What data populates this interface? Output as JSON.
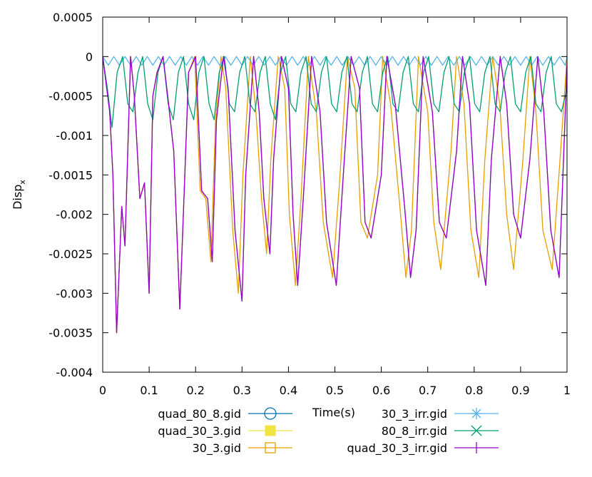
{
  "chart_data": {
    "type": "line",
    "xlabel": "Time(s)",
    "ylabel_main": "Disp",
    "ylabel_sub": "x",
    "xlim": [
      0,
      1
    ],
    "ylim": [
      -0.004,
      0.0005
    ],
    "xticks": [
      0,
      0.1,
      0.2,
      0.3,
      0.4,
      0.5,
      0.6,
      0.7,
      0.8,
      0.9,
      1
    ],
    "xtick_labels": [
      "0",
      "0.1",
      "0.2",
      "0.3",
      "0.4",
      "0.5",
      "0.6",
      "0.7",
      "0.8",
      "0.9",
      "1"
    ],
    "yticks": [
      0.0005,
      0,
      -0.0005,
      -0.001,
      -0.0015,
      -0.002,
      -0.0025,
      -0.003,
      -0.0035,
      -0.004
    ],
    "ytick_labels": [
      "0.0005",
      "0",
      "-0.0005",
      "-0.001",
      "-0.0015",
      "-0.002",
      "-0.0025",
      "-0.003",
      "-0.0035",
      "-0.004"
    ],
    "grid": false,
    "legend_position": "bottom",
    "series": [
      {
        "name": "quad_80_8.gid",
        "color": "#0072b2",
        "marker": "circle-open",
        "x": [
          0,
          0.015,
          0.022,
          0.03,
          0.041,
          0.048,
          0.055,
          0.06,
          0.068,
          0.08,
          0.09,
          0.1,
          0.108,
          0.117,
          0.13,
          0.14,
          0.153,
          0.166,
          0.175,
          0.185,
          0.2,
          0.213,
          0.226,
          0.236,
          0.245,
          0.26,
          0.27,
          0.285,
          0.3,
          0.308,
          0.325,
          0.337,
          0.347,
          0.36,
          0.368,
          0.385,
          0.4,
          0.41,
          0.42,
          0.432,
          0.45,
          0.468,
          0.482,
          0.503,
          0.517,
          0.535,
          0.553,
          0.565,
          0.578,
          0.6,
          0.612,
          0.63,
          0.65,
          0.663,
          0.675,
          0.69,
          0.71,
          0.725,
          0.74,
          0.762,
          0.775,
          0.79,
          0.805,
          0.825,
          0.837,
          0.856,
          0.87,
          0.885,
          0.9,
          0.92,
          0.937,
          0.95,
          0.965,
          0.983,
          1.0
        ],
        "y": [
          0,
          -0.0007,
          -0.0015,
          -0.0035,
          -0.0019,
          -0.0024,
          -0.001,
          0,
          -0.0005,
          -0.0018,
          -0.0016,
          -0.003,
          -0.0005,
          -0.0002,
          0,
          -0.0005,
          -0.0012,
          -0.0032,
          -0.0018,
          -0.0002,
          0,
          -0.0017,
          -0.0018,
          -0.0026,
          -0.0008,
          0,
          -0.0004,
          -0.0022,
          -0.0031,
          -0.0015,
          0,
          -0.0007,
          -0.0018,
          -0.0025,
          -0.0013,
          0,
          -0.0004,
          -0.002,
          -0.0029,
          -0.0018,
          0,
          -0.0007,
          -0.0021,
          -0.0029,
          -0.0016,
          0,
          -0.0004,
          -0.0021,
          -0.0023,
          -0.0015,
          0,
          -0.0006,
          -0.0019,
          -0.0028,
          -0.0022,
          0,
          -0.0007,
          -0.0021,
          -0.0023,
          -0.0012,
          0,
          -0.0006,
          -0.0022,
          -0.0029,
          -0.0013,
          0,
          -0.0006,
          -0.002,
          -0.0023,
          -0.0013,
          0,
          -0.0007,
          -0.0022,
          -0.0028,
          -0.0001
        ]
      },
      {
        "name": "quad_30_3.gid",
        "color": "#f0e442",
        "marker": "square-filled",
        "x": [
          0,
          0.015,
          0.022,
          0.03,
          0.041,
          0.048,
          0.055,
          0.06,
          0.068,
          0.08,
          0.09,
          0.1,
          0.108,
          0.117,
          0.13,
          0.14,
          0.153,
          0.166,
          0.175,
          0.185,
          0.2,
          0.213,
          0.226,
          0.236,
          0.245,
          0.26,
          0.27,
          0.285,
          0.3,
          0.308,
          0.325,
          0.337,
          0.347,
          0.36,
          0.368,
          0.385,
          0.4,
          0.41,
          0.42,
          0.432,
          0.45,
          0.468,
          0.482,
          0.503,
          0.517,
          0.535,
          0.553,
          0.565,
          0.578,
          0.6,
          0.612,
          0.63,
          0.65,
          0.663,
          0.675,
          0.69,
          0.71,
          0.725,
          0.74,
          0.762,
          0.775,
          0.79,
          0.805,
          0.825,
          0.837,
          0.856,
          0.87,
          0.885,
          0.9,
          0.92,
          0.937,
          0.95,
          0.965,
          0.983,
          1.0
        ],
        "y": [
          0,
          -0.0007,
          -0.0015,
          -0.0035,
          -0.0019,
          -0.0024,
          -0.001,
          0,
          -0.0005,
          -0.0018,
          -0.0016,
          -0.003,
          -0.0005,
          -0.0002,
          0,
          -0.0005,
          -0.0012,
          -0.0032,
          -0.0018,
          -0.0002,
          0,
          -0.0017,
          -0.0018,
          -0.0026,
          -0.0008,
          0,
          -0.0004,
          -0.0022,
          -0.0031,
          -0.0015,
          0,
          -0.0007,
          -0.0018,
          -0.0025,
          -0.0013,
          0,
          -0.0004,
          -0.002,
          -0.0029,
          -0.0018,
          0,
          -0.0007,
          -0.0021,
          -0.0029,
          -0.0016,
          0,
          -0.0004,
          -0.0021,
          -0.0023,
          -0.0015,
          0,
          -0.0006,
          -0.0019,
          -0.0028,
          -0.0022,
          0,
          -0.0007,
          -0.0021,
          -0.0023,
          -0.0012,
          0,
          -0.0006,
          -0.0022,
          -0.0029,
          -0.0013,
          0,
          -0.0006,
          -0.002,
          -0.0023,
          -0.0013,
          0,
          -0.0007,
          -0.0022,
          -0.0028,
          -0.0001
        ]
      },
      {
        "name": "30_3.gid",
        "color": "#e69f00",
        "marker": "square-open",
        "x": [
          0,
          0.015,
          0.022,
          0.03,
          0.041,
          0.048,
          0.055,
          0.06,
          0.068,
          0.08,
          0.09,
          0.1,
          0.108,
          0.117,
          0.13,
          0.14,
          0.153,
          0.166,
          0.175,
          0.185,
          0.198,
          0.21,
          0.222,
          0.233,
          0.243,
          0.255,
          0.265,
          0.28,
          0.292,
          0.302,
          0.318,
          0.33,
          0.342,
          0.353,
          0.362,
          0.378,
          0.392,
          0.402,
          0.415,
          0.427,
          0.443,
          0.46,
          0.475,
          0.495,
          0.51,
          0.527,
          0.543,
          0.556,
          0.57,
          0.592,
          0.603,
          0.62,
          0.64,
          0.653,
          0.665,
          0.68,
          0.7,
          0.713,
          0.728,
          0.75,
          0.762,
          0.778,
          0.793,
          0.81,
          0.823,
          0.84,
          0.855,
          0.87,
          0.885,
          0.905,
          0.92,
          0.933,
          0.948,
          0.968,
          0.985,
          1.0
        ],
        "y": [
          0,
          -0.0007,
          -0.0015,
          -0.0035,
          -0.0019,
          -0.0024,
          -0.001,
          0,
          -0.0005,
          -0.0018,
          -0.0016,
          -0.003,
          -0.0005,
          -0.0002,
          0,
          -0.0005,
          -0.0012,
          -0.0032,
          -0.0018,
          -0.0002,
          0,
          -0.0017,
          -0.0018,
          -0.0026,
          -0.0008,
          0,
          -0.0004,
          -0.0022,
          -0.003,
          -0.0015,
          0,
          -0.0007,
          -0.0018,
          -0.0025,
          -0.0013,
          0,
          -0.0004,
          -0.002,
          -0.0029,
          -0.0018,
          0,
          -0.0007,
          -0.0021,
          -0.0028,
          -0.0016,
          0,
          -0.0004,
          -0.0021,
          -0.0023,
          -0.0015,
          0,
          -0.0006,
          -0.0019,
          -0.0028,
          -0.0022,
          0,
          -0.0007,
          -0.0021,
          -0.0027,
          -0.0012,
          0,
          -0.0006,
          -0.0022,
          -0.0028,
          -0.0013,
          0,
          -0.0006,
          -0.002,
          -0.0027,
          -0.0013,
          0,
          -0.0007,
          -0.0022,
          -0.0027,
          -0.0013,
          0
        ]
      },
      {
        "name": "30_3_irr.gid",
        "color": "#56b4e9",
        "marker": "star",
        "x": [
          0,
          0.012,
          0.024,
          0.036,
          0.048,
          0.06,
          0.072,
          0.084,
          0.096,
          0.108,
          0.12,
          0.132,
          0.144,
          0.156,
          0.168,
          0.18,
          0.192,
          0.204,
          0.216,
          0.228,
          0.24,
          0.252,
          0.264,
          0.276,
          0.288,
          0.3,
          0.312,
          0.324,
          0.336,
          0.348,
          0.36,
          0.372,
          0.384,
          0.396,
          0.408,
          0.42,
          0.432,
          0.444,
          0.456,
          0.468,
          0.48,
          0.492,
          0.504,
          0.516,
          0.528,
          0.54,
          0.552,
          0.564,
          0.576,
          0.588,
          0.6,
          0.612,
          0.624,
          0.636,
          0.648,
          0.66,
          0.672,
          0.684,
          0.696,
          0.708,
          0.72,
          0.732,
          0.744,
          0.756,
          0.768,
          0.78,
          0.792,
          0.804,
          0.816,
          0.828,
          0.84,
          0.852,
          0.864,
          0.876,
          0.888,
          0.9,
          0.912,
          0.924,
          0.936,
          0.948,
          0.96,
          0.972,
          0.984,
          0.996,
          1.0
        ],
        "y": [
          0,
          -0.00011,
          0,
          -0.00011,
          0,
          -0.00011,
          0,
          -0.00011,
          0,
          -0.00011,
          0,
          -0.00011,
          0,
          -0.00011,
          0,
          -0.00011,
          0,
          -0.00011,
          0,
          -0.00011,
          0,
          -0.00011,
          0,
          -0.00011,
          0,
          -0.00011,
          0,
          -0.00011,
          0,
          -0.00011,
          0,
          -0.00011,
          0,
          -0.00011,
          0,
          -0.00011,
          0,
          -0.00011,
          0,
          -0.00011,
          0,
          -0.00011,
          0,
          -0.00011,
          0,
          -0.00011,
          0,
          -0.00011,
          0,
          -0.00011,
          0,
          -0.00011,
          0,
          -0.00011,
          0,
          -0.00011,
          0,
          -0.00011,
          0,
          -0.00011,
          0,
          -0.00011,
          0,
          -0.00011,
          0,
          -0.00011,
          0,
          -0.00011,
          0,
          -0.00011,
          0,
          -0.00011,
          0,
          -0.00011,
          0,
          -0.00011,
          0,
          -0.00011,
          0,
          -0.00011,
          0,
          -0.00011,
          0,
          -0.00011,
          0
        ]
      },
      {
        "name": "80_8_irr.gid",
        "color": "#009e73",
        "marker": "x",
        "x": [
          0,
          0.01,
          0.02,
          0.031,
          0.043,
          0.054,
          0.065,
          0.076,
          0.086,
          0.097,
          0.108,
          0.119,
          0.13,
          0.141,
          0.152,
          0.163,
          0.174,
          0.185,
          0.196,
          0.207,
          0.218,
          0.229,
          0.24,
          0.251,
          0.262,
          0.273,
          0.284,
          0.295,
          0.306,
          0.317,
          0.328,
          0.339,
          0.35,
          0.361,
          0.372,
          0.383,
          0.394,
          0.405,
          0.416,
          0.427,
          0.438,
          0.449,
          0.46,
          0.471,
          0.482,
          0.493,
          0.504,
          0.515,
          0.526,
          0.537,
          0.548,
          0.559,
          0.57,
          0.581,
          0.592,
          0.603,
          0.614,
          0.625,
          0.636,
          0.647,
          0.658,
          0.669,
          0.68,
          0.691,
          0.702,
          0.713,
          0.724,
          0.735,
          0.746,
          0.757,
          0.768,
          0.779,
          0.79,
          0.801,
          0.812,
          0.823,
          0.834,
          0.845,
          0.856,
          0.867,
          0.878,
          0.889,
          0.9,
          0.911,
          0.922,
          0.933,
          0.944,
          0.955,
          0.966,
          0.977,
          0.988,
          1.0
        ],
        "y": [
          0,
          -0.0004,
          -0.0009,
          -0.0002,
          0,
          -0.0006,
          -0.0007,
          -0.0002,
          0,
          -0.0006,
          -0.0008,
          -0.0002,
          0,
          -0.0006,
          -0.0008,
          -0.0002,
          0,
          -0.0006,
          -0.0008,
          -0.0002,
          0,
          -0.0006,
          -0.0008,
          -0.0002,
          0,
          -0.0006,
          -0.0007,
          -0.0002,
          0,
          -0.0006,
          -0.0007,
          -0.0002,
          0,
          -0.0006,
          -0.0008,
          -0.0002,
          0,
          -0.0006,
          -0.0007,
          -0.0002,
          0,
          -0.0006,
          -0.0007,
          -0.0002,
          0,
          -0.0006,
          -0.0007,
          -0.0002,
          0,
          -0.0006,
          -0.0007,
          -0.0002,
          0,
          -0.0006,
          -0.0007,
          -0.0002,
          0,
          -0.0006,
          -0.0007,
          -0.0002,
          0,
          -0.0006,
          -0.0007,
          -0.0002,
          0,
          -0.0006,
          -0.0007,
          -0.0002,
          0,
          -0.0006,
          -0.0007,
          -0.0002,
          0,
          -0.0006,
          -0.0007,
          -0.0002,
          0,
          -0.0006,
          -0.0007,
          -0.0002,
          0,
          -0.0006,
          -0.0007,
          -0.0002,
          0,
          -0.0006,
          -0.0007,
          -0.0002,
          0,
          -0.0006,
          -0.0007,
          -0.0004
        ]
      },
      {
        "name": "quad_30_3_irr.gid",
        "color": "#9400d3",
        "marker": "plus",
        "x": [
          0,
          0.015,
          0.022,
          0.03,
          0.041,
          0.048,
          0.055,
          0.06,
          0.068,
          0.08,
          0.09,
          0.1,
          0.108,
          0.117,
          0.13,
          0.14,
          0.153,
          0.166,
          0.175,
          0.185,
          0.2,
          0.213,
          0.226,
          0.236,
          0.245,
          0.26,
          0.27,
          0.285,
          0.3,
          0.308,
          0.325,
          0.337,
          0.347,
          0.36,
          0.368,
          0.385,
          0.4,
          0.41,
          0.42,
          0.432,
          0.45,
          0.468,
          0.482,
          0.503,
          0.517,
          0.535,
          0.553,
          0.565,
          0.578,
          0.6,
          0.612,
          0.63,
          0.65,
          0.663,
          0.675,
          0.69,
          0.71,
          0.725,
          0.74,
          0.762,
          0.775,
          0.79,
          0.805,
          0.825,
          0.837,
          0.856,
          0.87,
          0.885,
          0.9,
          0.92,
          0.937,
          0.95,
          0.965,
          0.983,
          1.0
        ],
        "y": [
          0,
          -0.0007,
          -0.0015,
          -0.0035,
          -0.0019,
          -0.0024,
          -0.001,
          0,
          -0.0005,
          -0.0018,
          -0.0016,
          -0.003,
          -0.0005,
          -0.0002,
          0,
          -0.0005,
          -0.0012,
          -0.0032,
          -0.0018,
          -0.0002,
          0,
          -0.0017,
          -0.0018,
          -0.0026,
          -0.0008,
          0,
          -0.0004,
          -0.0022,
          -0.0031,
          -0.0015,
          0,
          -0.0007,
          -0.0018,
          -0.0025,
          -0.0013,
          0,
          -0.0004,
          -0.002,
          -0.0029,
          -0.0018,
          0,
          -0.0007,
          -0.0021,
          -0.0029,
          -0.0016,
          0,
          -0.0004,
          -0.0021,
          -0.0023,
          -0.0015,
          0,
          -0.0006,
          -0.0019,
          -0.0028,
          -0.0022,
          0,
          -0.0007,
          -0.0021,
          -0.0023,
          -0.0012,
          0,
          -0.0006,
          -0.0022,
          -0.0029,
          -0.0013,
          0,
          -0.0006,
          -0.002,
          -0.0023,
          -0.0013,
          0,
          -0.0007,
          -0.0022,
          -0.0028,
          -0.0001
        ]
      }
    ]
  }
}
